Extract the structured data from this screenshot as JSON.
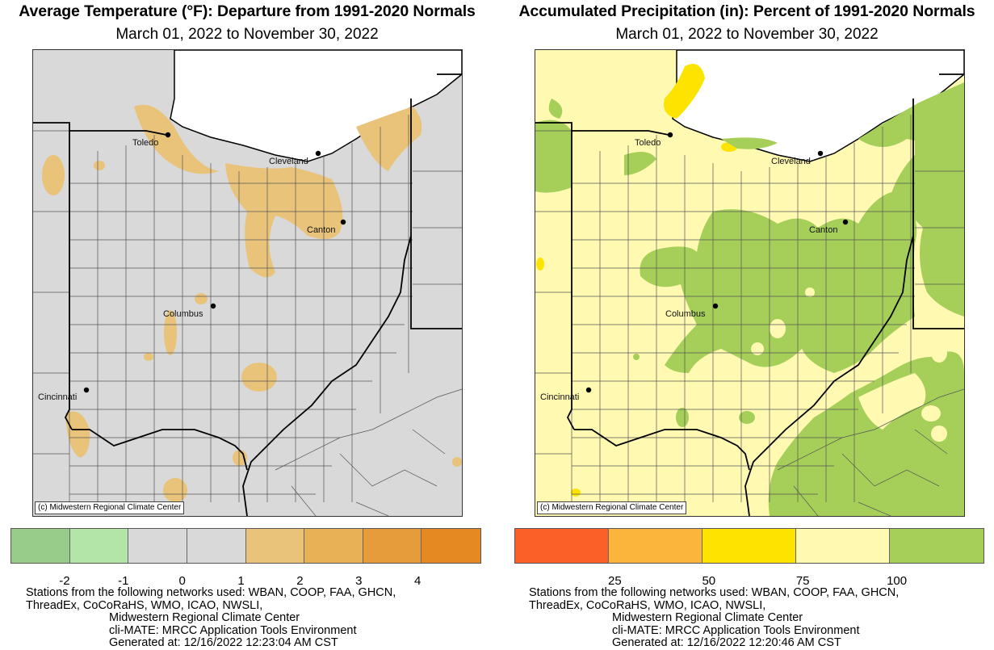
{
  "left": {
    "title": "Average Temperature (°F): Departure from 1991-2020 Normals",
    "subtitle": "March 01, 2022 to November 30, 2022",
    "credit": "(c) Midwestern Regional Climate Center",
    "legend": {
      "colors": [
        "#98cc8a",
        "#b3e6a6",
        "#d9d9d9",
        "#d9d9d9",
        "#e8c379",
        "#e8b155",
        "#e69c3b",
        "#e58a22"
      ],
      "ticks": [
        "-2",
        "-1",
        "0",
        "1",
        "2",
        "3",
        "4"
      ]
    },
    "footer": {
      "line1": "Stations from the following networks used: WBAN, COOP, FAA, GHCN,",
      "line2": "ThreadEx, CoCoRaHS, WMO, ICAO, NWSLI,",
      "line3": "Midwestern Regional Climate Center",
      "line4": "cli-MATE: MRCC Application Tools Environment",
      "line5": "Generated at: 12/16/2022 12:23:04 AM CST"
    },
    "colors": {
      "background": "#d9d9d9",
      "anomaly": "#e8c379"
    }
  },
  "right": {
    "title": "Accumulated Precipitation (in): Percent of 1991-2020 Normals",
    "subtitle": "March 01, 2022 to November 30, 2022",
    "credit": "(c) Midwestern Regional Climate Center",
    "legend": {
      "colors": [
        "#fa6028",
        "#fbb53c",
        "#fde300",
        "#fff9b2",
        "#a6cf5a"
      ],
      "ticks": [
        "25",
        "50",
        "75",
        "100"
      ]
    },
    "footer": {
      "line1": "Stations from the following networks used: WBAN, COOP, FAA, GHCN,",
      "line2": "ThreadEx, CoCoRaHS, WMO, ICAO, NWSLI,",
      "line3": "Midwestern Regional Climate Center",
      "line4": "cli-MATE: MRCC Application Tools Environment",
      "line5": "Generated at: 12/16/2022 12:20:46 AM CST"
    },
    "colors": {
      "background": "#fff9b2",
      "wet": "#a6cf5a",
      "dry": "#fde300"
    }
  },
  "cities": {
    "toledo": "Toledo",
    "cleveland": "Cleveland",
    "canton": "Canton",
    "columbus": "Columbus",
    "cincinnati": "Cincinnati"
  }
}
